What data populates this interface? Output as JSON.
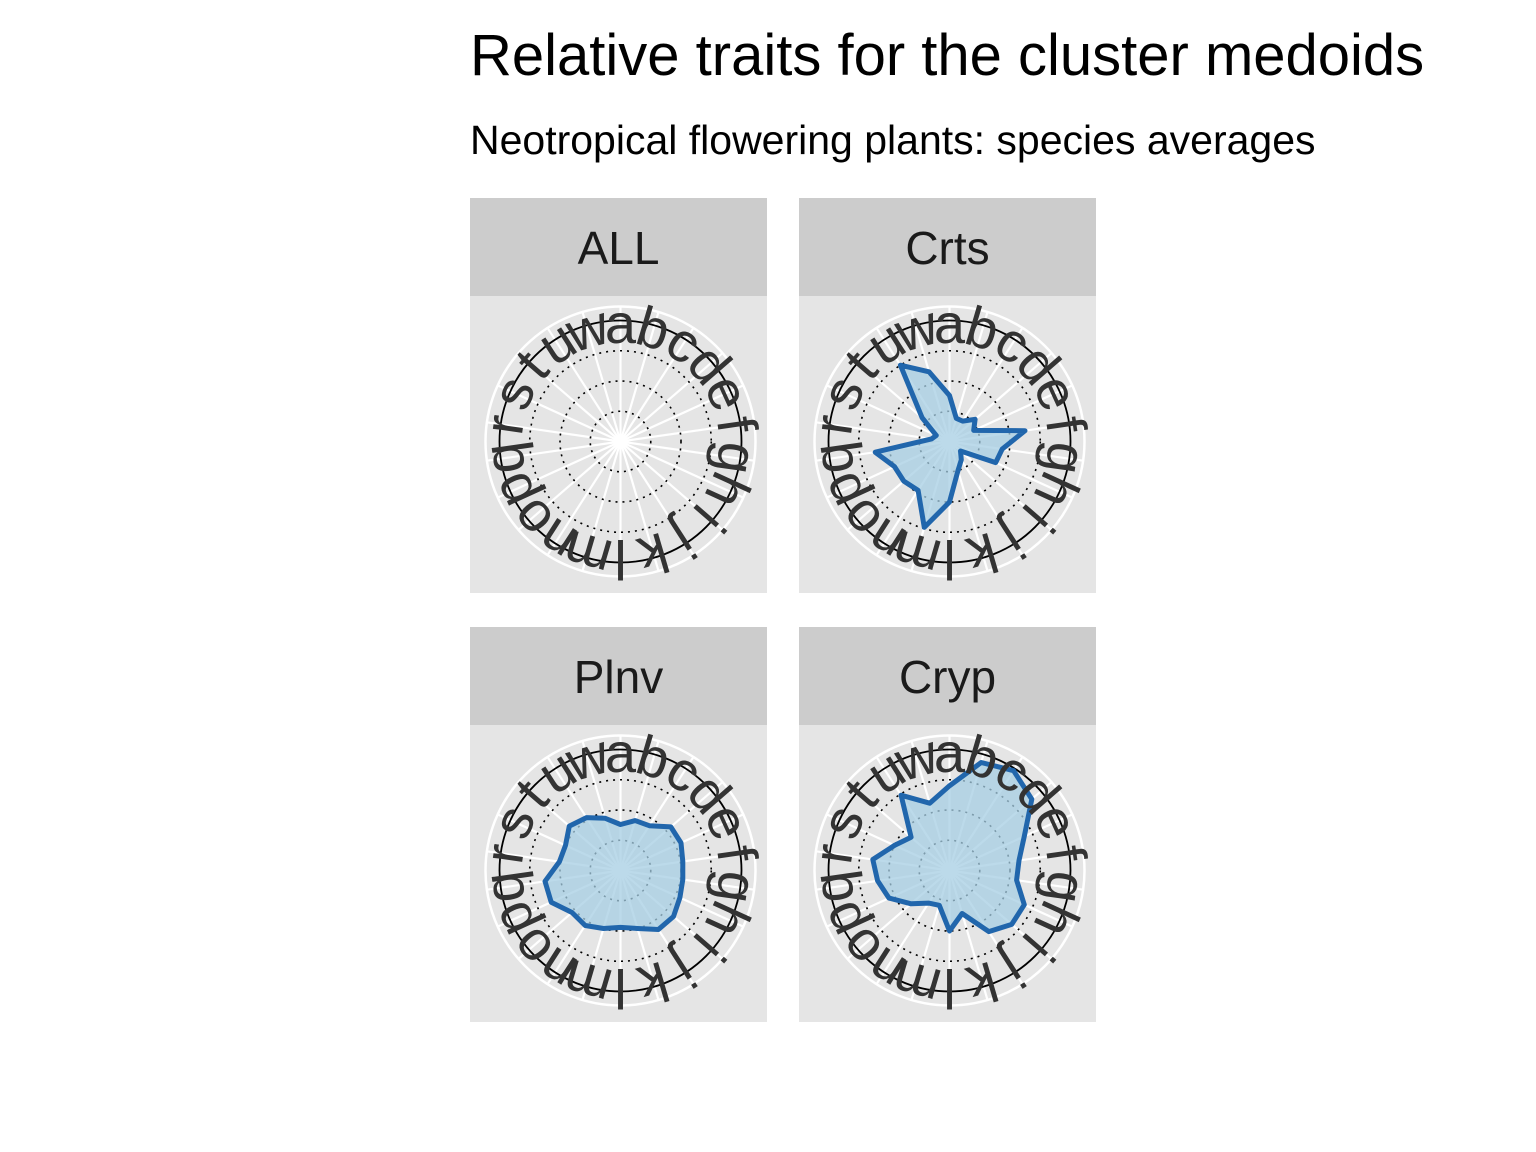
{
  "chart_data": {
    "type": "radar",
    "title": "Relative traits for the cluster medoids",
    "subtitle": "Neotropical flowering plants: species averages",
    "axes": [
      "a",
      "b",
      "c",
      "d",
      "e",
      "f",
      "g",
      "h",
      "i",
      "j",
      "k",
      "l",
      "m",
      "n",
      "o",
      "p",
      "q",
      "r",
      "s",
      "t",
      "u",
      "w"
    ],
    "r_range": [
      0,
      1
    ],
    "grid": true,
    "grid_rings": [
      0.25,
      0.5,
      0.75,
      1.0
    ],
    "colors": {
      "line": "#2166ac",
      "fill": "#a6cee3",
      "panel_bg": "#e5e5e5",
      "strip_bg": "#cccccc"
    },
    "panels": [
      {
        "name": "ALL",
        "values": []
      },
      {
        "name": "Crts",
        "values": [
          0.38,
          0.2,
          0.2,
          0.28,
          0.22,
          0.63,
          0.44,
          0.42,
          0.12,
          0.18,
          0.25,
          0.5,
          0.74,
          0.48,
          0.5,
          0.5,
          0.62,
          0.15,
          0.12,
          0.3,
          0.75,
          0.6
        ]
      },
      {
        "name": "Plnv",
        "values": [
          0.38,
          0.43,
          0.44,
          0.55,
          0.55,
          0.52,
          0.52,
          0.54,
          0.58,
          0.58,
          0.5,
          0.47,
          0.5,
          0.54,
          0.53,
          0.63,
          0.63,
          0.51,
          0.5,
          0.56,
          0.52,
          0.45
        ]
      },
      {
        "name": "Cryp",
        "values": [
          0.7,
          0.93,
          0.98,
          0.9,
          0.68,
          0.58,
          0.56,
          0.68,
          0.68,
          0.6,
          0.37,
          0.5,
          0.3,
          0.32,
          0.42,
          0.55,
          0.6,
          0.64,
          0.5,
          0.42,
          0.74,
          0.58
        ]
      }
    ]
  }
}
